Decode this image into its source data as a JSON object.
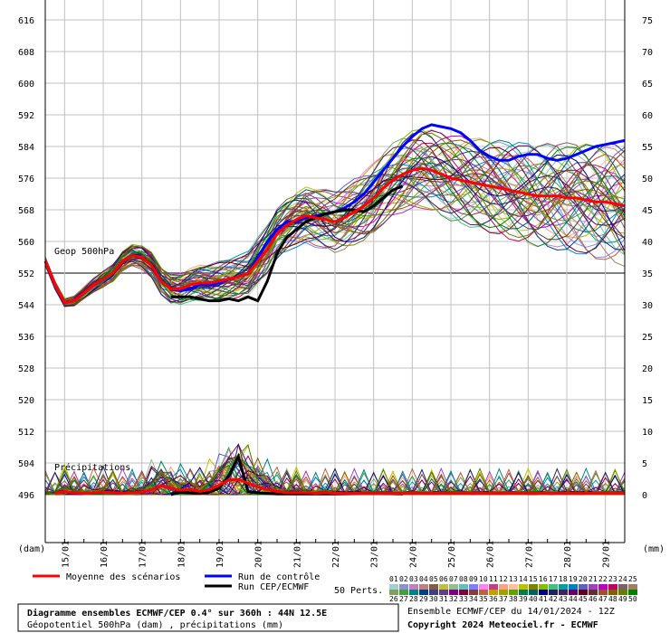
{
  "chart_data": {
    "type": "line",
    "y_left_ticks": [
      616,
      608,
      600,
      592,
      584,
      576,
      568,
      560,
      552,
      544,
      536,
      528,
      520,
      512,
      504,
      496
    ],
    "y_right_ticks": [
      75,
      70,
      65,
      60,
      55,
      50,
      45,
      40,
      35,
      30,
      25,
      20,
      15,
      10,
      5,
      0
    ],
    "ylabel_left": "(dam)",
    "ylabel_right": "(mm)",
    "x_ticks": [
      "15/01",
      "16/01",
      "17/01",
      "18/01",
      "19/01",
      "20/01",
      "21/01",
      "22/01",
      "23/01",
      "24/01",
      "25/01",
      "26/01",
      "27/01",
      "28/01",
      "29/01"
    ],
    "x_start_day": 14.5,
    "x_end_day": 29.5,
    "annotations": {
      "geop": "Geop 500hPa",
      "precip": "Précipitations"
    },
    "legend": {
      "mean": "Moyenne des scénarios",
      "control": "Run de contrôle",
      "cep": "Run CEP/ECMWF",
      "perts": "50 Perts.",
      "numbers_row1": [
        "01",
        "02",
        "03",
        "04",
        "05",
        "06",
        "07",
        "08",
        "09",
        "10",
        "11",
        "12",
        "13",
        "14",
        "15",
        "16",
        "17",
        "18",
        "19",
        "20",
        "21",
        "22",
        "23",
        "24",
        "25"
      ],
      "numbers_row2": [
        "26",
        "27",
        "28",
        "29",
        "30",
        "31",
        "32",
        "33",
        "34",
        "35",
        "36",
        "37",
        "38",
        "39",
        "40",
        "41",
        "42",
        "43",
        "44",
        "45",
        "46",
        "47",
        "48",
        "49",
        "50"
      ]
    },
    "footer": {
      "title": "Diagramme ensembles ECMWF/CEP 0.4° sur 360h : 44N 12.5E",
      "subtitle": "Géopotentiel 500hPa (dam) , précipitations (mm)",
      "run": "Ensemble ECMWF/CEP du 14/01/2024 - 12Z",
      "copyright": "Copyright 2024 Meteociel.fr - ECMWF"
    },
    "colors": {
      "mean": "#ff0000",
      "control": "#0000ff",
      "cep": "#000000",
      "grid": "#c0c0c0",
      "ref_line": "#808080",
      "palette": [
        "#a0d0d0",
        "#9090d0",
        "#c080c0",
        "#c08080",
        "#806040",
        "#c0c040",
        "#90c090",
        "#60c0c0",
        "#8080ff",
        "#ff80ff",
        "#c04080",
        "#ffa080",
        "#ffc0a0",
        "#c0c000",
        "#808000",
        "#80c000",
        "#40c080",
        "#00a0a0",
        "#0080c0",
        "#6060c0",
        "#a040c0",
        "#c000c0",
        "#c00060",
        "#806060",
        "#a08060",
        "#80a060",
        "#40a040",
        "#008080",
        "#004080",
        "#404080",
        "#604080",
        "#800080",
        "#800040",
        "#804040",
        "#c06040",
        "#c0a000",
        "#a0a000",
        "#60a000",
        "#008040",
        "#006060",
        "#000080",
        "#202060",
        "#402060",
        "#600060",
        "#600020",
        "#603030",
        "#a05030",
        "#806000",
        "#608000",
        "#008000"
      ]
    },
    "mean_geop": [
      [
        14.5,
        555
      ],
      [
        14.75,
        549
      ],
      [
        15.0,
        544.5
      ],
      [
        15.25,
        545
      ],
      [
        15.5,
        547
      ],
      [
        15.75,
        549
      ],
      [
        16.0,
        550.5
      ],
      [
        16.25,
        552
      ],
      [
        16.5,
        555
      ],
      [
        16.75,
        556.5
      ],
      [
        17.0,
        556
      ],
      [
        17.25,
        554
      ],
      [
        17.5,
        550
      ],
      [
        17.75,
        548
      ],
      [
        18.0,
        548
      ],
      [
        18.25,
        549
      ],
      [
        18.5,
        549.5
      ],
      [
        18.75,
        549.5
      ],
      [
        19.0,
        550
      ],
      [
        19.25,
        550.5
      ],
      [
        19.5,
        551
      ],
      [
        19.75,
        552
      ],
      [
        20.0,
        555
      ],
      [
        20.25,
        558
      ],
      [
        20.5,
        562
      ],
      [
        20.75,
        564
      ],
      [
        21.0,
        565.5
      ],
      [
        21.25,
        566.5
      ],
      [
        21.5,
        566
      ],
      [
        21.75,
        565.5
      ],
      [
        22.0,
        565
      ],
      [
        22.25,
        566
      ],
      [
        22.5,
        567.5
      ],
      [
        22.75,
        569
      ],
      [
        23.0,
        571
      ],
      [
        23.25,
        573.5
      ],
      [
        23.5,
        575.5
      ],
      [
        23.75,
        577
      ],
      [
        24.0,
        578
      ],
      [
        24.25,
        578.5
      ],
      [
        24.5,
        578
      ],
      [
        24.75,
        577
      ],
      [
        25.0,
        576
      ],
      [
        25.25,
        575.5
      ],
      [
        25.5,
        575
      ],
      [
        25.75,
        574.5
      ],
      [
        26.0,
        574
      ],
      [
        26.25,
        573.5
      ],
      [
        26.5,
        573
      ],
      [
        26.75,
        572.5
      ],
      [
        27.0,
        572
      ],
      [
        27.25,
        571.5
      ],
      [
        27.5,
        571.5
      ],
      [
        27.75,
        571.5
      ],
      [
        28.0,
        571
      ],
      [
        28.25,
        571
      ],
      [
        28.5,
        570.5
      ],
      [
        28.75,
        570
      ],
      [
        29.0,
        570
      ],
      [
        29.25,
        569.5
      ],
      [
        29.5,
        569
      ]
    ],
    "control_geop": [
      [
        14.5,
        555
      ],
      [
        14.75,
        549
      ],
      [
        15.0,
        544.5
      ],
      [
        15.25,
        545
      ],
      [
        15.5,
        547
      ],
      [
        15.75,
        549
      ],
      [
        16.0,
        550.5
      ],
      [
        16.25,
        552
      ],
      [
        16.5,
        555
      ],
      [
        16.75,
        556.5
      ],
      [
        17.0,
        556
      ],
      [
        17.25,
        554
      ],
      [
        17.5,
        550
      ],
      [
        17.75,
        548
      ],
      [
        18.0,
        547.5
      ],
      [
        18.25,
        548
      ],
      [
        18.5,
        549
      ],
      [
        18.75,
        549
      ],
      [
        19.0,
        549.5
      ],
      [
        19.25,
        550.5
      ],
      [
        19.5,
        551
      ],
      [
        19.75,
        552
      ],
      [
        20.0,
        556
      ],
      [
        20.25,
        560
      ],
      [
        20.5,
        563
      ],
      [
        20.75,
        565
      ],
      [
        21.0,
        565
      ],
      [
        21.25,
        566
      ],
      [
        21.5,
        566.5
      ],
      [
        21.75,
        567
      ],
      [
        22.0,
        567.5
      ],
      [
        22.25,
        568.5
      ],
      [
        22.5,
        570
      ],
      [
        22.75,
        572
      ],
      [
        23.0,
        575
      ],
      [
        23.25,
        578
      ],
      [
        23.5,
        581
      ],
      [
        23.75,
        584
      ],
      [
        24.0,
        586.5
      ],
      [
        24.25,
        588.5
      ],
      [
        24.5,
        589.5
      ],
      [
        24.75,
        589
      ],
      [
        25.0,
        588.5
      ],
      [
        25.25,
        587.5
      ],
      [
        25.5,
        585.5
      ],
      [
        25.75,
        583
      ],
      [
        26.0,
        581.5
      ],
      [
        26.25,
        580.5
      ],
      [
        26.5,
        580.5
      ],
      [
        26.75,
        581.5
      ],
      [
        27.0,
        582
      ],
      [
        27.25,
        582
      ],
      [
        27.5,
        581
      ],
      [
        27.75,
        580.5
      ],
      [
        28.0,
        581
      ],
      [
        28.25,
        582
      ],
      [
        28.5,
        583
      ],
      [
        28.75,
        584
      ],
      [
        29.0,
        584.5
      ],
      [
        29.25,
        585
      ],
      [
        29.5,
        585.5
      ]
    ],
    "cep_geop": [
      [
        17.75,
        546
      ],
      [
        18.0,
        546
      ],
      [
        18.25,
        546
      ],
      [
        18.5,
        545.5
      ],
      [
        18.75,
        545
      ],
      [
        19.0,
        545
      ],
      [
        19.25,
        545.5
      ],
      [
        19.5,
        545
      ],
      [
        19.75,
        546
      ],
      [
        20.0,
        545
      ],
      [
        20.25,
        550
      ],
      [
        20.5,
        557
      ],
      [
        20.75,
        561
      ],
      [
        21.0,
        563
      ],
      [
        21.25,
        565
      ],
      [
        21.5,
        566
      ],
      [
        21.75,
        567
      ],
      [
        22.0,
        567.5
      ],
      [
        22.25,
        568
      ],
      [
        22.5,
        568
      ],
      [
        22.75,
        567.5
      ],
      [
        23.0,
        569
      ],
      [
        23.25,
        571
      ],
      [
        23.5,
        573
      ],
      [
        23.75,
        574
      ]
    ],
    "mean_precip": [
      [
        14.75,
        0.2
      ],
      [
        15.0,
        0.5
      ],
      [
        15.25,
        0.3
      ],
      [
        15.5,
        0.2
      ],
      [
        15.75,
        0.3
      ],
      [
        16.0,
        0.4
      ],
      [
        16.25,
        0.3
      ],
      [
        16.5,
        0.2
      ],
      [
        16.75,
        0.3
      ],
      [
        17.0,
        0.4
      ],
      [
        17.25,
        0.8
      ],
      [
        17.5,
        1.4
      ],
      [
        17.75,
        1.0
      ],
      [
        18.0,
        0.7
      ],
      [
        18.25,
        0.8
      ],
      [
        18.5,
        0.5
      ],
      [
        18.75,
        0.8
      ],
      [
        19.0,
        1.5
      ],
      [
        19.25,
        2.3
      ],
      [
        19.5,
        2.4
      ],
      [
        19.75,
        1.8
      ],
      [
        20.0,
        1.2
      ],
      [
        20.25,
        0.8
      ],
      [
        20.5,
        0.5
      ],
      [
        20.75,
        0.3
      ],
      [
        21.0,
        0.3
      ],
      [
        21.25,
        0.3
      ],
      [
        21.5,
        0.2
      ],
      [
        21.75,
        0.3
      ],
      [
        22.0,
        0.2
      ],
      [
        29.5,
        0.2
      ]
    ],
    "cep_precip": [
      [
        17.75,
        0
      ],
      [
        18.0,
        0.4
      ],
      [
        18.25,
        0.3
      ],
      [
        18.5,
        0.2
      ],
      [
        18.75,
        0.4
      ],
      [
        19.0,
        1.0
      ],
      [
        19.25,
        3.0
      ],
      [
        19.5,
        6.0
      ],
      [
        19.75,
        0.5
      ],
      [
        20.0,
        0.3
      ],
      [
        20.25,
        0.2
      ],
      [
        20.5,
        0.1
      ],
      [
        21.0,
        0.1
      ],
      [
        22.0,
        0.1
      ],
      [
        23.0,
        0.2
      ],
      [
        23.75,
        0.1
      ]
    ]
  }
}
